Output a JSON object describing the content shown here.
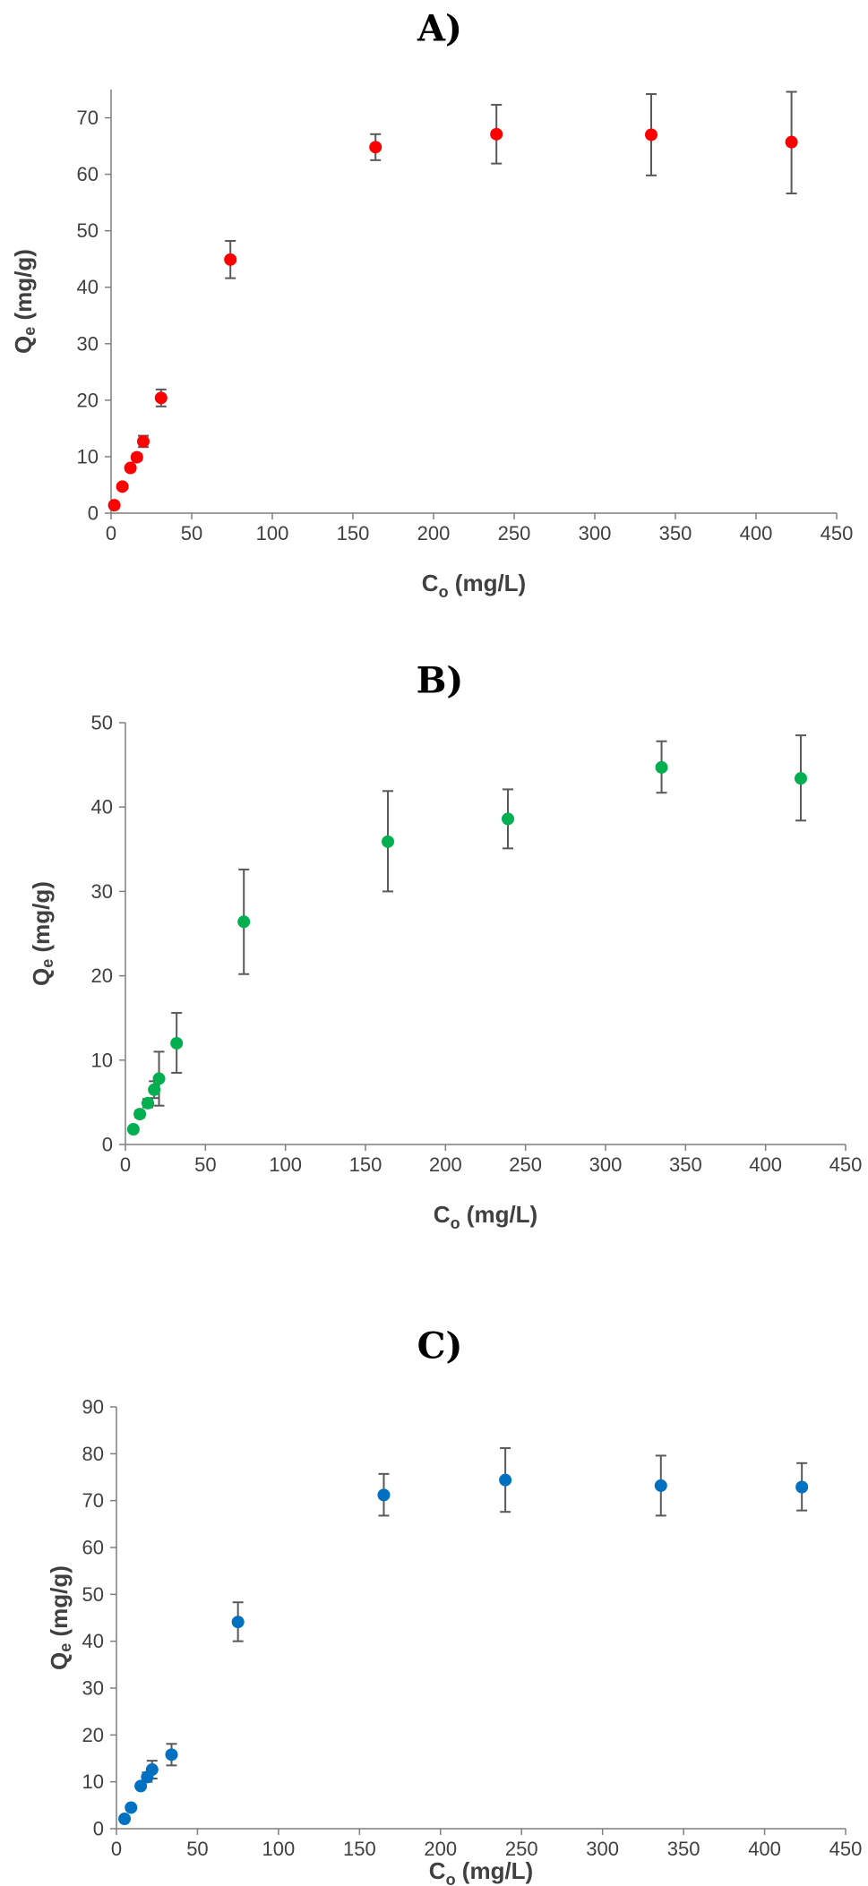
{
  "chart_data": [
    {
      "type": "scatter",
      "title": "A)",
      "xlabel": "C",
      "xlabel_sub": "o",
      "xlabel_unit": " (mg/L)",
      "ylabel": "Q",
      "ylabel_sub": "e",
      "ylabel_unit": " (mg/g)",
      "xlim": [
        0,
        450
      ],
      "ylim": [
        0,
        75
      ],
      "xticks": [
        0,
        50,
        100,
        150,
        200,
        250,
        300,
        350,
        400,
        450
      ],
      "yticks": [
        0,
        10,
        20,
        30,
        40,
        50,
        60,
        70
      ],
      "grid": false,
      "color": "#ff0000",
      "points": [
        {
          "x": 2,
          "y": 1.4,
          "err_low": 1.0,
          "err_high": 1.8
        },
        {
          "x": 7,
          "y": 4.7,
          "err_low": 4.3,
          "err_high": 5.1
        },
        {
          "x": 12,
          "y": 8.0,
          "err_low": 7.5,
          "err_high": 8.5
        },
        {
          "x": 16,
          "y": 9.9,
          "err_low": 9.3,
          "err_high": 10.5
        },
        {
          "x": 20,
          "y": 12.7,
          "err_low": 11.7,
          "err_high": 13.7
        },
        {
          "x": 31,
          "y": 20.4,
          "err_low": 18.9,
          "err_high": 21.9
        },
        {
          "x": 74,
          "y": 44.9,
          "err_low": 41.6,
          "err_high": 48.2
        },
        {
          "x": 164,
          "y": 64.8,
          "err_low": 62.5,
          "err_high": 67.1
        },
        {
          "x": 239,
          "y": 67.1,
          "err_low": 61.9,
          "err_high": 72.3
        },
        {
          "x": 335,
          "y": 67.0,
          "err_low": 59.8,
          "err_high": 74.2
        },
        {
          "x": 422,
          "y": 65.7,
          "err_low": 56.6,
          "err_high": 74.6
        }
      ]
    },
    {
      "type": "scatter",
      "title": "B)",
      "xlabel": "C",
      "xlabel_sub": "o",
      "xlabel_unit": " (mg/L)",
      "ylabel": "Q",
      "ylabel_sub": "e",
      "ylabel_unit": " (mg/g)",
      "xlim": [
        0,
        450
      ],
      "ylim": [
        0,
        50
      ],
      "xticks": [
        0,
        50,
        100,
        150,
        200,
        250,
        300,
        350,
        400,
        450
      ],
      "yticks": [
        0,
        10,
        20,
        30,
        40,
        50
      ],
      "grid": false,
      "color": "#00b050",
      "points": [
        {
          "x": 5,
          "y": 1.8,
          "err_low": 1.5,
          "err_high": 2.1
        },
        {
          "x": 9,
          "y": 3.6,
          "err_low": 3.2,
          "err_high": 4.0
        },
        {
          "x": 14,
          "y": 4.9,
          "err_low": 4.4,
          "err_high": 5.4
        },
        {
          "x": 18,
          "y": 6.5,
          "err_low": 5.5,
          "err_high": 7.5
        },
        {
          "x": 21,
          "y": 7.8,
          "err_low": 4.6,
          "err_high": 11.0
        },
        {
          "x": 32,
          "y": 12.0,
          "err_low": 8.5,
          "err_high": 15.6
        },
        {
          "x": 74,
          "y": 26.4,
          "err_low": 20.2,
          "err_high": 32.6
        },
        {
          "x": 164,
          "y": 35.9,
          "err_low": 30.0,
          "err_high": 41.9
        },
        {
          "x": 239,
          "y": 38.6,
          "err_low": 35.1,
          "err_high": 42.1
        },
        {
          "x": 335,
          "y": 44.7,
          "err_low": 41.7,
          "err_high": 47.8
        },
        {
          "x": 422,
          "y": 43.4,
          "err_low": 38.4,
          "err_high": 48.5
        }
      ]
    },
    {
      "type": "scatter",
      "title": "C)",
      "xlabel": "C",
      "xlabel_sub": "o",
      "xlabel_unit": " (mg/L)",
      "ylabel": "Q",
      "ylabel_sub": "e",
      "ylabel_unit": " (mg/g)",
      "xlim": [
        0,
        450
      ],
      "ylim": [
        0,
        90
      ],
      "xticks": [
        0,
        50,
        100,
        150,
        200,
        250,
        300,
        350,
        400,
        450
      ],
      "yticks": [
        0,
        10,
        20,
        30,
        40,
        50,
        60,
        70,
        80,
        90
      ],
      "grid": false,
      "color": "#0070c0",
      "points": [
        {
          "x": 5,
          "y": 2.1,
          "err_low": 1.8,
          "err_high": 2.4
        },
        {
          "x": 9,
          "y": 4.5,
          "err_low": 4.1,
          "err_high": 4.9
        },
        {
          "x": 15,
          "y": 9.1,
          "err_low": 8.6,
          "err_high": 9.6
        },
        {
          "x": 19,
          "y": 11.0,
          "err_low": 10.0,
          "err_high": 12.0
        },
        {
          "x": 22,
          "y": 12.6,
          "err_low": 10.7,
          "err_high": 14.5
        },
        {
          "x": 34,
          "y": 15.8,
          "err_low": 13.5,
          "err_high": 18.1
        },
        {
          "x": 75,
          "y": 44.1,
          "err_low": 40.0,
          "err_high": 48.3
        },
        {
          "x": 165,
          "y": 71.2,
          "err_low": 66.8,
          "err_high": 75.7
        },
        {
          "x": 240,
          "y": 74.4,
          "err_low": 67.6,
          "err_high": 81.2
        },
        {
          "x": 336,
          "y": 73.2,
          "err_low": 66.8,
          "err_high": 79.6
        },
        {
          "x": 423,
          "y": 72.9,
          "err_low": 67.9,
          "err_high": 78.0
        }
      ]
    }
  ]
}
